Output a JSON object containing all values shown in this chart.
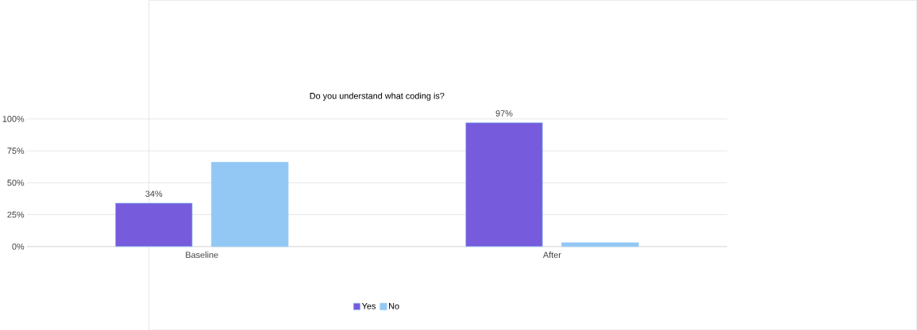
{
  "chart_data": {
    "type": "bar",
    "title": "Do you understand what coding is?",
    "categories": [
      "Baseline",
      "After"
    ],
    "series": [
      {
        "name": "Yes",
        "color": "#765bdc",
        "values": [
          34,
          97
        ],
        "value_labels": [
          "34%",
          "97%"
        ]
      },
      {
        "name": "No",
        "color": "#93c8f5",
        "values": [
          66,
          3
        ]
      }
    ],
    "ylim": [
      0,
      100
    ],
    "yticks": [
      {
        "value": 0,
        "label": "0%"
      },
      {
        "value": 25,
        "label": "25%"
      },
      {
        "value": 50,
        "label": "50%"
      },
      {
        "value": 75,
        "label": "75%"
      },
      {
        "value": 100,
        "label": "100%"
      }
    ],
    "grid": "y",
    "legend": "bottom"
  }
}
